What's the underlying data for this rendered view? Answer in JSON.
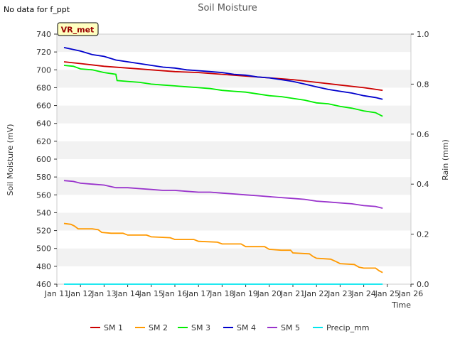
{
  "no_data_note": "No data for f_ppt",
  "chart_data": {
    "type": "line",
    "title": "Soil Moisture",
    "xlabel": "Time",
    "ylabel": "Soil Moisture (mV)",
    "y2label": "Rain (mm)",
    "site_badge": "VR_met",
    "x_ticks": [
      "Jan 11",
      "Jan 12",
      "Jan 13",
      "Jan 14",
      "Jan 15",
      "Jan 16",
      "Jan 17",
      "Jan 18",
      "Jan 19",
      "Jan 20",
      "Jan 21",
      "Jan 22",
      "Jan 23",
      "Jan 24",
      "Jan 25",
      "Jan 26"
    ],
    "xlim": [
      11,
      26
    ],
    "ylim": [
      460,
      740
    ],
    "y_ticks": [
      "460",
      "480",
      "500",
      "520",
      "540",
      "560",
      "580",
      "600",
      "620",
      "640",
      "660",
      "680",
      "700",
      "720",
      "740"
    ],
    "y2lim": [
      0,
      1
    ],
    "y2_ticks": [
      "0.0",
      "0.2",
      "0.4",
      "0.6",
      "0.8",
      "1.0"
    ],
    "series": [
      {
        "name": "SM 1",
        "color": "#cc0000",
        "axis": "left",
        "points": [
          [
            11.3,
            709
          ],
          [
            12.0,
            707
          ],
          [
            13.0,
            704
          ],
          [
            14.0,
            702
          ],
          [
            15.0,
            700
          ],
          [
            16.0,
            698
          ],
          [
            17.0,
            697
          ],
          [
            18.0,
            695
          ],
          [
            19.0,
            693
          ],
          [
            20.0,
            691
          ],
          [
            21.0,
            689
          ],
          [
            22.0,
            686
          ],
          [
            23.0,
            683
          ],
          [
            24.0,
            680
          ],
          [
            24.8,
            677
          ]
        ]
      },
      {
        "name": "SM 2",
        "color": "#ff9900",
        "axis": "left",
        "points": [
          [
            11.3,
            528
          ],
          [
            11.6,
            527
          ],
          [
            11.75,
            525
          ],
          [
            11.9,
            522
          ],
          [
            12.5,
            522
          ],
          [
            12.75,
            521
          ],
          [
            12.9,
            518
          ],
          [
            13.3,
            517
          ],
          [
            13.8,
            517
          ],
          [
            14.0,
            515
          ],
          [
            14.8,
            515
          ],
          [
            15.0,
            513
          ],
          [
            15.8,
            512
          ],
          [
            16.0,
            510
          ],
          [
            16.8,
            510
          ],
          [
            17.0,
            508
          ],
          [
            17.8,
            507
          ],
          [
            18.0,
            505
          ],
          [
            18.8,
            505
          ],
          [
            19.0,
            502
          ],
          [
            19.8,
            502
          ],
          [
            20.0,
            499
          ],
          [
            20.5,
            498
          ],
          [
            20.9,
            498
          ],
          [
            21.0,
            495
          ],
          [
            21.7,
            494
          ],
          [
            21.85,
            491
          ],
          [
            22.0,
            489
          ],
          [
            22.6,
            488
          ],
          [
            22.85,
            485
          ],
          [
            23.0,
            483
          ],
          [
            23.6,
            482
          ],
          [
            23.8,
            479
          ],
          [
            24.0,
            478
          ],
          [
            24.5,
            478
          ],
          [
            24.65,
            475
          ],
          [
            24.8,
            473
          ]
        ]
      },
      {
        "name": "SM 3",
        "color": "#00ee00",
        "axis": "left",
        "points": [
          [
            11.3,
            705
          ],
          [
            11.7,
            704
          ],
          [
            12.0,
            701
          ],
          [
            12.5,
            700
          ],
          [
            13.0,
            697
          ],
          [
            13.5,
            695
          ],
          [
            13.55,
            688
          ],
          [
            14.0,
            687
          ],
          [
            14.5,
            686
          ],
          [
            15.0,
            684
          ],
          [
            15.5,
            683
          ],
          [
            16.0,
            682
          ],
          [
            16.5,
            681
          ],
          [
            17.0,
            680
          ],
          [
            17.5,
            679
          ],
          [
            18.0,
            677
          ],
          [
            18.5,
            676
          ],
          [
            19.0,
            675
          ],
          [
            19.5,
            673
          ],
          [
            20.0,
            671
          ],
          [
            20.5,
            670
          ],
          [
            21.0,
            668
          ],
          [
            21.5,
            666
          ],
          [
            22.0,
            663
          ],
          [
            22.5,
            662
          ],
          [
            23.0,
            659
          ],
          [
            23.5,
            657
          ],
          [
            24.0,
            654
          ],
          [
            24.5,
            652
          ],
          [
            24.8,
            648
          ]
        ]
      },
      {
        "name": "SM 4",
        "color": "#0000cc",
        "axis": "left",
        "points": [
          [
            11.3,
            725
          ],
          [
            12.0,
            721
          ],
          [
            12.5,
            717
          ],
          [
            13.0,
            715
          ],
          [
            13.5,
            711
          ],
          [
            14.0,
            709
          ],
          [
            14.5,
            707
          ],
          [
            15.0,
            705
          ],
          [
            15.5,
            703
          ],
          [
            16.0,
            702
          ],
          [
            16.5,
            700
          ],
          [
            17.0,
            699
          ],
          [
            17.5,
            698
          ],
          [
            18.0,
            697
          ],
          [
            18.5,
            695
          ],
          [
            19.0,
            694
          ],
          [
            19.5,
            692
          ],
          [
            20.0,
            691
          ],
          [
            20.5,
            689
          ],
          [
            21.0,
            687
          ],
          [
            21.5,
            684
          ],
          [
            22.0,
            681
          ],
          [
            22.5,
            678
          ],
          [
            23.0,
            676
          ],
          [
            23.5,
            674
          ],
          [
            24.0,
            671
          ],
          [
            24.5,
            669
          ],
          [
            24.8,
            667
          ]
        ]
      },
      {
        "name": "SM 5",
        "color": "#9933cc",
        "axis": "left",
        "points": [
          [
            11.3,
            576
          ],
          [
            11.7,
            575
          ],
          [
            12.0,
            573
          ],
          [
            12.5,
            572
          ],
          [
            13.0,
            571
          ],
          [
            13.5,
            568
          ],
          [
            14.0,
            568
          ],
          [
            14.5,
            567
          ],
          [
            15.0,
            566
          ],
          [
            15.5,
            565
          ],
          [
            16.0,
            565
          ],
          [
            16.5,
            564
          ],
          [
            17.0,
            563
          ],
          [
            17.5,
            563
          ],
          [
            18.0,
            562
          ],
          [
            18.5,
            561
          ],
          [
            19.0,
            560
          ],
          [
            19.5,
            559
          ],
          [
            20.0,
            558
          ],
          [
            20.5,
            557
          ],
          [
            21.0,
            556
          ],
          [
            21.5,
            555
          ],
          [
            22.0,
            553
          ],
          [
            22.5,
            552
          ],
          [
            23.0,
            551
          ],
          [
            23.5,
            550
          ],
          [
            24.0,
            548
          ],
          [
            24.5,
            547
          ],
          [
            24.8,
            545
          ]
        ]
      },
      {
        "name": "Precip_mm",
        "color": "#00e5ee",
        "axis": "right",
        "points": [
          [
            11.3,
            0.0
          ],
          [
            24.8,
            0.0
          ]
        ]
      }
    ]
  }
}
